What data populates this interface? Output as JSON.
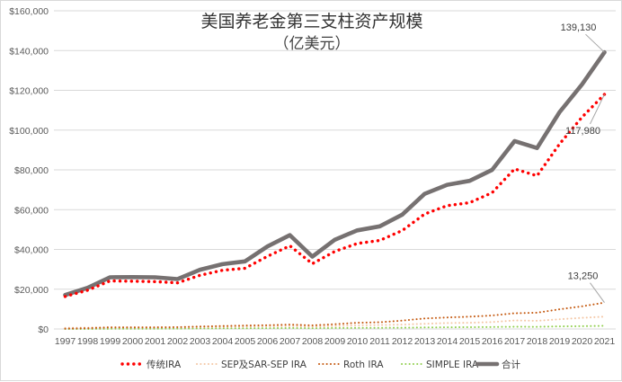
{
  "chart_data": {
    "type": "line",
    "title": "美国养老金第三支柱资产规模",
    "subtitle": "（亿美元）",
    "xlabel": "",
    "ylabel": "",
    "ylim": [
      0,
      160000
    ],
    "y_ticks": [
      "$0",
      "$20,000",
      "$40,000",
      "$60,000",
      "$80,000",
      "$100,000",
      "$120,000",
      "$140,000",
      "$160,000"
    ],
    "categories": [
      "1997",
      "1998",
      "1999",
      "2000",
      "2001",
      "2002",
      "2003",
      "2004",
      "2005",
      "2006",
      "2007",
      "2008",
      "2009",
      "2010",
      "2011",
      "2012",
      "2013",
      "2014",
      "2015",
      "2016",
      "2017",
      "2018",
      "2019",
      "2020",
      "2021"
    ],
    "grid": true,
    "legend_position": "bottom",
    "series": [
      {
        "name": "传统IRA",
        "color": "#ff0000",
        "style": "dotted-thick",
        "values": [
          16300,
          19500,
          24200,
          24000,
          23800,
          23200,
          27000,
          29500,
          30500,
          36500,
          41800,
          32800,
          39000,
          43000,
          44500,
          49500,
          57800,
          62000,
          63500,
          68500,
          80500,
          77000,
          93000,
          106500,
          117980
        ]
      },
      {
        "name": "SEP及SAR-SEP IRA",
        "color": "#f4c7a5",
        "style": "dotted",
        "values": [
          600,
          700,
          900,
          900,
          900,
          900,
          1000,
          1100,
          1200,
          1400,
          1500,
          1200,
          1500,
          1800,
          2000,
          2200,
          2600,
          3000,
          3100,
          3500,
          4300,
          4100,
          4900,
          5600,
          6200
        ]
      },
      {
        "name": "Roth IRA",
        "color": "#c55a11",
        "style": "dotted",
        "values": [
          200,
          400,
          800,
          800,
          800,
          900,
          1200,
          1500,
          1700,
          1900,
          2200,
          1800,
          2400,
          3100,
          3400,
          4200,
          5300,
          5800,
          6200,
          6800,
          7900,
          8200,
          9900,
          11400,
          13250
        ]
      },
      {
        "name": "SIMPLE IRA",
        "color": "#92d050",
        "style": "dotted",
        "values": [
          0,
          0,
          100,
          100,
          150,
          200,
          250,
          300,
          350,
          400,
          500,
          400,
          500,
          550,
          600,
          650,
          750,
          850,
          900,
          1000,
          1150,
          1100,
          1300,
          1400,
          1600
        ]
      },
      {
        "name": "合计",
        "color": "#767171",
        "style": "solid-thick",
        "values": [
          17100,
          20700,
          26000,
          26100,
          26000,
          25100,
          29800,
          32600,
          34000,
          41500,
          47200,
          36400,
          44900,
          49600,
          51600,
          57500,
          68000,
          72500,
          74500,
          80000,
          94500,
          91000,
          109000,
          123000,
          139130
        ]
      }
    ],
    "annotations": [
      {
        "text": "139,130",
        "series": "合计",
        "index": 24
      },
      {
        "text": "117,980",
        "series": "传统IRA",
        "index": 24
      },
      {
        "text": "13,250",
        "series": "Roth IRA",
        "index": 24
      }
    ]
  }
}
